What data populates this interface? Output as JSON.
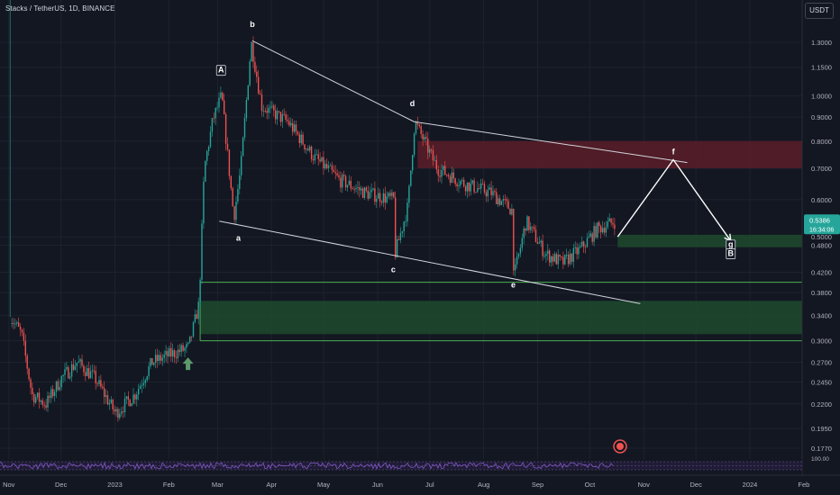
{
  "header": {
    "symbol": "Stacks / TetherUS, 1D, BINANCE",
    "currency": "USDT"
  },
  "price_tag": {
    "price": "0.5386",
    "countdown": "16:34:06"
  },
  "rsi": {
    "level": "100.00"
  },
  "colors": {
    "background": "#131722",
    "up": "#26a69a",
    "down": "#ef5350",
    "supply_zone": "#5b1d28",
    "demand_zone": "#1e4a2e",
    "trendline": "#d1d4dc",
    "arrow": "#ffffff",
    "rsi_line": "#7e57c2"
  },
  "chart_data": {
    "type": "candlestick",
    "title": "Stacks / TetherUS, 1D, BINANCE",
    "scale": "log",
    "y_ticks": [
      1.3,
      1.15,
      1.0,
      0.9,
      0.8,
      0.7,
      0.6,
      0.5,
      0.48,
      0.42,
      0.38,
      0.34,
      0.3,
      0.27,
      0.245,
      0.22,
      0.195,
      0.177
    ],
    "x_ticks": [
      "Nov",
      "Dec",
      "2023",
      "Feb",
      "Mar",
      "Apr",
      "May",
      "Jun",
      "Jul",
      "Aug",
      "Sep",
      "Oct",
      "Nov",
      "Dec",
      "2024",
      "Feb"
    ],
    "price_path": [
      [
        "2022-11-01",
        0.34
      ],
      [
        "2022-11-08",
        0.31
      ],
      [
        "2022-11-14",
        0.23
      ],
      [
        "2022-11-22",
        0.22
      ],
      [
        "2022-12-01",
        0.25
      ],
      [
        "2022-12-10",
        0.27
      ],
      [
        "2022-12-20",
        0.25
      ],
      [
        "2023-01-01",
        0.21
      ],
      [
        "2023-01-12",
        0.23
      ],
      [
        "2023-01-22",
        0.27
      ],
      [
        "2023-02-01",
        0.28
      ],
      [
        "2023-02-12",
        0.29
      ],
      [
        "2023-02-18",
        0.36
      ],
      [
        "2023-02-21",
        0.7
      ],
      [
        "2023-02-26",
        0.89
      ],
      [
        "2023-03-03",
        1.0
      ],
      [
        "2023-03-10",
        0.55
      ],
      [
        "2023-03-14",
        0.7
      ],
      [
        "2023-03-20",
        1.3
      ],
      [
        "2023-03-26",
        0.95
      ],
      [
        "2023-04-10",
        0.88
      ],
      [
        "2023-04-25",
        0.74
      ],
      [
        "2023-05-10",
        0.66
      ],
      [
        "2023-05-25",
        0.62
      ],
      [
        "2023-06-10",
        0.6
      ],
      [
        "2023-06-10",
        0.45
      ],
      [
        "2023-06-18",
        0.58
      ],
      [
        "2023-06-22",
        0.88
      ],
      [
        "2023-07-05",
        0.7
      ],
      [
        "2023-07-20",
        0.65
      ],
      [
        "2023-08-05",
        0.62
      ],
      [
        "2023-08-17",
        0.57
      ],
      [
        "2023-08-18",
        0.41
      ],
      [
        "2023-08-25",
        0.54
      ],
      [
        "2023-09-05",
        0.46
      ],
      [
        "2023-09-15",
        0.44
      ],
      [
        "2023-09-25",
        0.47
      ],
      [
        "2023-10-05",
        0.52
      ],
      [
        "2023-10-15",
        0.5386
      ]
    ],
    "wave_labels": [
      {
        "label": "A",
        "date": "2023-03-03",
        "price": 1.12
      },
      {
        "label": "a",
        "date": "2023-03-13",
        "price": 0.49
      },
      {
        "label": "b",
        "date": "2023-03-21",
        "price": 1.4
      },
      {
        "label": "c",
        "date": "2023-06-10",
        "price": 0.42
      },
      {
        "label": "d",
        "date": "2023-06-21",
        "price": 0.95
      },
      {
        "label": "e",
        "date": "2023-08-18",
        "price": 0.39
      },
      {
        "label": "f",
        "date": "2023-11-18",
        "price": 0.75
      },
      {
        "label": "g",
        "date": "2023-12-21",
        "price": 0.475
      },
      {
        "label": "B",
        "date": "2023-12-21",
        "price": 0.455
      }
    ],
    "trendlines": [
      {
        "from": [
          "2023-03-21",
          1.31
        ],
        "to": [
          "2023-06-22",
          0.88
        ]
      },
      {
        "from": [
          "2023-06-22",
          0.88
        ],
        "to": [
          "2023-11-26",
          0.72
        ]
      },
      {
        "from": [
          "2023-03-02",
          0.54
        ],
        "to": [
          "2023-10-30",
          0.36
        ]
      }
    ],
    "zones": [
      {
        "name": "supply",
        "from": "2023-06-24",
        "to": "2024-02-28",
        "top": 0.8,
        "bottom": 0.7
      },
      {
        "name": "demand-small",
        "from": "2023-10-17",
        "to": "2024-02-28",
        "top": 0.505,
        "bottom": 0.475
      },
      {
        "name": "demand-large",
        "from": "2023-02-19",
        "to": "2024-02-28",
        "top": 0.365,
        "bottom": 0.31
      }
    ],
    "zone_outlines": [
      {
        "from": "2023-02-19",
        "to": "2024-02-28",
        "top": 0.4,
        "bottom": 0.3
      }
    ],
    "projection": [
      [
        "2023-10-17",
        0.5
      ],
      [
        "2023-11-18",
        0.73
      ],
      [
        "2023-12-21",
        0.49
      ]
    ],
    "marker_up": {
      "date": "2023-02-12",
      "price": 0.268
    }
  }
}
